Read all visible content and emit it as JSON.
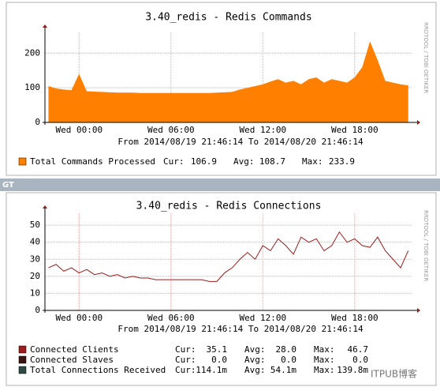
{
  "bar_label": "GT",
  "watermark": "ITPUB博客",
  "rrd_credit": "RRDTOOL / TOBI OETIKER",
  "chart_data": [
    {
      "type": "area",
      "title": "3.40_redis - Redis Commands",
      "subtitle": "From 2014/08/19 21:46:14 To 2014/08/20 21:46:14",
      "x": [
        -2,
        -1.5,
        -1,
        -0.5,
        0,
        0.5,
        1,
        1.5,
        2,
        2.5,
        3,
        3.5,
        4,
        4.5,
        5,
        5.5,
        6,
        6.5,
        7,
        7.5,
        8,
        8.5,
        9,
        9.5,
        10,
        10.5,
        11,
        11.5,
        12,
        12.5,
        13,
        13.5,
        14,
        14.5,
        15,
        15.5,
        16,
        16.5,
        17,
        17.5,
        18,
        18.5,
        19,
        19.5,
        20,
        20.5,
        21,
        21.5
      ],
      "series": [
        {
          "name": "Total Commands Processed",
          "color": "#ff7f00",
          "values": [
            105,
            98,
            95,
            93,
            140,
            90,
            89,
            88,
            87,
            86,
            86,
            86,
            85,
            85,
            85,
            85,
            85,
            85,
            85,
            85,
            85,
            85,
            86,
            87,
            88,
            95,
            100,
            105,
            110,
            118,
            125,
            115,
            120,
            110,
            125,
            130,
            115,
            125,
            120,
            115,
            130,
            160,
            234,
            180,
            120,
            115,
            110,
            107
          ],
          "stats": [
            {
              "label": "Cur:",
              "value": "106.9"
            },
            {
              "label": "Avg:",
              "value": "108.7"
            },
            {
              "label": "Max:",
              "value": "233.9"
            }
          ]
        }
      ],
      "xlim": [
        -2.229,
        21.771
      ],
      "xticks": [
        {
          "value": 0,
          "label": "Wed 00:00"
        },
        {
          "value": 6,
          "label": "Wed 06:00"
        },
        {
          "value": 12,
          "label": "Wed 12:00"
        },
        {
          "value": 18,
          "label": "Wed 18:00"
        }
      ],
      "ylim": [
        0,
        260
      ],
      "yticks": [
        0,
        100,
        200
      ],
      "grid": true
    },
    {
      "type": "line",
      "title": "3.40_redis - Redis Connections",
      "subtitle": "From 2014/08/19 21:46:14 To 2014/08/20 21:46:14",
      "x": [
        -2,
        -1.5,
        -1,
        -0.5,
        0,
        0.5,
        1,
        1.5,
        2,
        2.5,
        3,
        3.5,
        4,
        4.5,
        5,
        5.5,
        6,
        6.5,
        7,
        7.5,
        8,
        8.5,
        9,
        9.5,
        10,
        10.5,
        11,
        11.5,
        12,
        12.5,
        13,
        13.5,
        14,
        14.5,
        15,
        15.5,
        16,
        16.5,
        17,
        17.5,
        18,
        18.5,
        19,
        19.5,
        20,
        20.5,
        21,
        21.5
      ],
      "series": [
        {
          "name": "Connected Clients",
          "color": "#9b1c1c",
          "values": [
            25,
            27,
            23,
            25,
            22,
            24,
            21,
            22,
            20,
            21,
            19,
            20,
            19,
            19,
            18,
            18,
            18,
            18,
            18,
            18,
            18,
            17,
            17,
            22,
            25,
            30,
            34,
            30,
            38,
            35,
            42,
            38,
            33,
            43,
            40,
            42,
            35,
            38,
            46,
            40,
            42,
            38,
            37,
            43,
            35,
            30,
            25,
            35
          ],
          "stats": [
            {
              "label": "Cur:",
              "value": "35.1"
            },
            {
              "label": "Avg:",
              "value": "28.0"
            },
            {
              "label": "Max:",
              "value": "46.7"
            }
          ]
        },
        {
          "name": "Connected Slaves",
          "color": "#3a1410",
          "stats": [
            {
              "label": "Cur:",
              "value": "0.0"
            },
            {
              "label": "Avg:",
              "value": "0.0"
            },
            {
              "label": "Max:",
              "value": "0.0"
            }
          ]
        },
        {
          "name": "Total Connections Received",
          "color": "#2f4a44",
          "stats": [
            {
              "label": "Cur:",
              "value": "114.1m"
            },
            {
              "label": "Avg:",
              "value": "54.1m"
            },
            {
              "label": "Max:",
              "value": "139.8m"
            }
          ]
        }
      ],
      "xlim": [
        -2.229,
        21.771
      ],
      "xticks": [
        {
          "value": 0,
          "label": "Wed 00:00"
        },
        {
          "value": 6,
          "label": "Wed 06:00"
        },
        {
          "value": 12,
          "label": "Wed 12:00"
        },
        {
          "value": 18,
          "label": "Wed 18:00"
        }
      ],
      "ylim": [
        0,
        57
      ],
      "yticks": [
        0,
        10,
        20,
        30,
        40,
        50
      ],
      "grid": true
    }
  ]
}
